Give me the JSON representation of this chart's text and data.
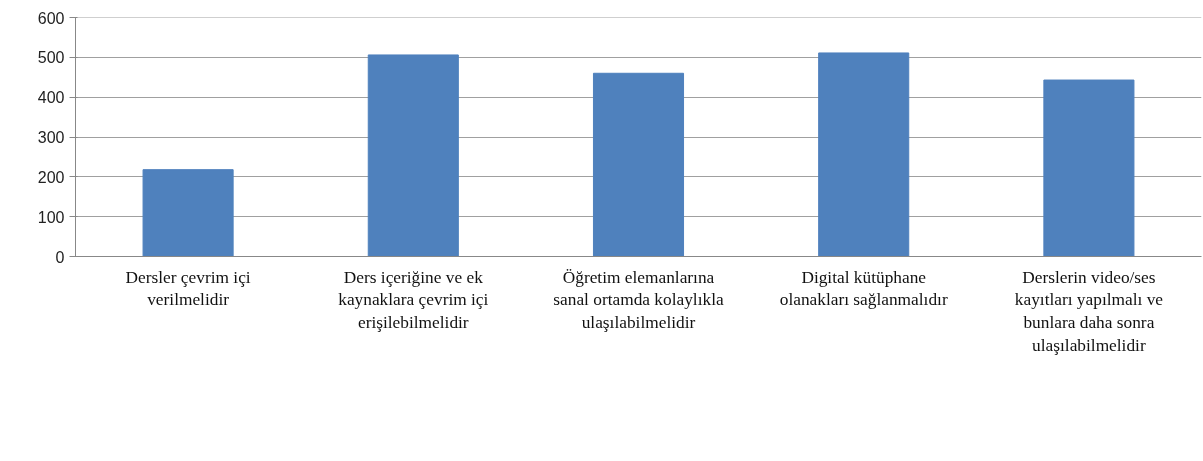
{
  "chart_data": {
    "type": "bar",
    "categories": [
      "Dersler çevrim içi\nverilmelidir",
      "Ders içeriğine ve ek\nkaynaklara çevrim içi\nerişilebilmelidir",
      "Öğretim elemanlarına\nsanal ortamda kolaylıkla\nulaşılabilmelidir",
      "Digital kütüphane\nolanakları sağlanmalıdır",
      "Derslerin video/ses\nkayıtları yapılmalı ve\nbunlara daha sonra\nulaşılabilmelidir"
    ],
    "values": [
      218,
      506,
      460,
      511,
      443
    ],
    "color": "#4f81bd",
    "ylim": [
      0,
      600
    ],
    "yticks": [
      0,
      100,
      200,
      300,
      400,
      500,
      600
    ],
    "grid": "y"
  }
}
